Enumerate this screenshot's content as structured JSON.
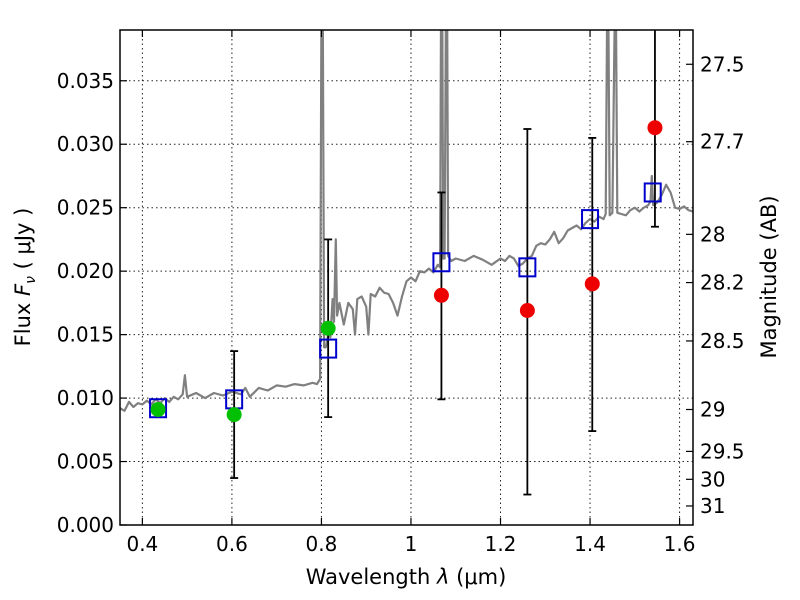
{
  "chart_data": {
    "type": "scatter",
    "title": "",
    "xlabel_main": "Wavelength",
    "xlabel_symbol": "λ",
    "xlabel_unit": "(μm)",
    "ylabel_main": "Flux",
    "ylabel_symbol": "F",
    "ylabel_subscript": "ν",
    "ylabel_unit": "( μJy )",
    "y2label": "Magnitude (AB)",
    "xlim": [
      0.35,
      1.63
    ],
    "ylim": [
      0.0,
      0.039
    ],
    "x_ticks": [
      0.4,
      0.6,
      0.8,
      1.0,
      1.2,
      1.4,
      1.6
    ],
    "x_tick_labels": [
      "0.4",
      "0.6",
      "0.8",
      "1",
      "1.2",
      "1.4",
      "1.6"
    ],
    "y_ticks": [
      0.0,
      0.005,
      0.01,
      0.015,
      0.02,
      0.025,
      0.03,
      0.035
    ],
    "y_tick_labels": [
      "0.000",
      "0.005",
      "0.010",
      "0.015",
      "0.020",
      "0.025",
      "0.030",
      "0.035"
    ],
    "y2_ticks": [
      {
        "label": "27.5",
        "flux": 0.0363
      },
      {
        "label": "27.7",
        "flux": 0.0302
      },
      {
        "label": "28",
        "flux": 0.0229
      },
      {
        "label": "28.2",
        "flux": 0.0191
      },
      {
        "label": "28.5",
        "flux": 0.0145
      },
      {
        "label": "29",
        "flux": 0.0091
      },
      {
        "label": "29.5",
        "flux": 0.0058
      },
      {
        "label": "30",
        "flux": 0.0036
      },
      {
        "label": "31",
        "flux": 0.0015
      }
    ],
    "grid": true,
    "colors": {
      "spectrum": "#808080",
      "model_box": "#0000cc",
      "green": "#00c000",
      "red": "#ee0000",
      "errorbar": "#000000"
    },
    "spectrum": [
      [
        0.35,
        0.0092
      ],
      [
        0.36,
        0.009
      ],
      [
        0.37,
        0.0097
      ],
      [
        0.38,
        0.0093
      ],
      [
        0.39,
        0.0096
      ],
      [
        0.4,
        0.0095
      ],
      [
        0.41,
        0.0098
      ],
      [
        0.42,
        0.0095
      ],
      [
        0.43,
        0.0099
      ],
      [
        0.44,
        0.0096
      ],
      [
        0.45,
        0.01
      ],
      [
        0.46,
        0.0097
      ],
      [
        0.47,
        0.0101
      ],
      [
        0.48,
        0.0099
      ],
      [
        0.49,
        0.0103
      ],
      [
        0.495,
        0.0118
      ],
      [
        0.5,
        0.0101
      ],
      [
        0.52,
        0.0104
      ],
      [
        0.54,
        0.01
      ],
      [
        0.56,
        0.0104
      ],
      [
        0.58,
        0.0102
      ],
      [
        0.6,
        0.0105
      ],
      [
        0.62,
        0.0103
      ],
      [
        0.63,
        0.0108
      ],
      [
        0.64,
        0.0101
      ],
      [
        0.66,
        0.0108
      ],
      [
        0.68,
        0.0106
      ],
      [
        0.7,
        0.011
      ],
      [
        0.72,
        0.0109
      ],
      [
        0.74,
        0.0111
      ],
      [
        0.76,
        0.011
      ],
      [
        0.78,
        0.0112
      ],
      [
        0.79,
        0.0111
      ],
      [
        0.797,
        0.0115
      ],
      [
        0.8,
        0.04
      ],
      [
        0.803,
        0.04
      ],
      [
        0.806,
        0.014
      ],
      [
        0.81,
        0.014
      ],
      [
        0.815,
        0.015
      ],
      [
        0.82,
        0.0148
      ],
      [
        0.825,
        0.0178
      ],
      [
        0.828,
        0.016
      ],
      [
        0.832,
        0.0225
      ],
      [
        0.835,
        0.0165
      ],
      [
        0.84,
        0.0175
      ],
      [
        0.85,
        0.0158
      ],
      [
        0.86,
        0.0175
      ],
      [
        0.87,
        0.017
      ],
      [
        0.875,
        0.015
      ],
      [
        0.88,
        0.0178
      ],
      [
        0.89,
        0.018
      ],
      [
        0.9,
        0.0172
      ],
      [
        0.905,
        0.015
      ],
      [
        0.91,
        0.0182
      ],
      [
        0.92,
        0.018
      ],
      [
        0.93,
        0.0187
      ],
      [
        0.94,
        0.0183
      ],
      [
        0.95,
        0.0182
      ],
      [
        0.96,
        0.0175
      ],
      [
        0.97,
        0.0165
      ],
      [
        0.98,
        0.018
      ],
      [
        0.99,
        0.0192
      ],
      [
        1.0,
        0.0195
      ],
      [
        1.01,
        0.0192
      ],
      [
        1.02,
        0.02
      ],
      [
        1.03,
        0.0199
      ],
      [
        1.04,
        0.0202
      ],
      [
        1.05,
        0.0199
      ],
      [
        1.06,
        0.0205
      ],
      [
        1.065,
        0.0203
      ],
      [
        1.067,
        0.04
      ],
      [
        1.07,
        0.04
      ],
      [
        1.072,
        0.021
      ],
      [
        1.075,
        0.021
      ],
      [
        1.078,
        0.04
      ],
      [
        1.081,
        0.04
      ],
      [
        1.083,
        0.0212
      ],
      [
        1.09,
        0.0208
      ],
      [
        1.1,
        0.021
      ],
      [
        1.12,
        0.0208
      ],
      [
        1.14,
        0.0212
      ],
      [
        1.16,
        0.0209
      ],
      [
        1.18,
        0.0205
      ],
      [
        1.2,
        0.021
      ],
      [
        1.21,
        0.0208
      ],
      [
        1.22,
        0.0212
      ],
      [
        1.23,
        0.021
      ],
      [
        1.24,
        0.0204
      ],
      [
        1.25,
        0.0206
      ],
      [
        1.26,
        0.021
      ],
      [
        1.27,
        0.0212
      ],
      [
        1.28,
        0.022
      ],
      [
        1.29,
        0.0222
      ],
      [
        1.3,
        0.0221
      ],
      [
        1.31,
        0.0225
      ],
      [
        1.32,
        0.0231
      ],
      [
        1.33,
        0.0222
      ],
      [
        1.34,
        0.0226
      ],
      [
        1.35,
        0.0232
      ],
      [
        1.36,
        0.0234
      ],
      [
        1.37,
        0.0236
      ],
      [
        1.38,
        0.0233
      ],
      [
        1.39,
        0.0238
      ],
      [
        1.4,
        0.0241
      ],
      [
        1.41,
        0.0239
      ],
      [
        1.42,
        0.0243
      ],
      [
        1.43,
        0.0241
      ],
      [
        1.435,
        0.0245
      ],
      [
        1.438,
        0.04
      ],
      [
        1.441,
        0.04
      ],
      [
        1.444,
        0.0244
      ],
      [
        1.45,
        0.0246
      ],
      [
        1.455,
        0.04
      ],
      [
        1.458,
        0.04
      ],
      [
        1.461,
        0.0246
      ],
      [
        1.47,
        0.0245
      ],
      [
        1.48,
        0.0244
      ],
      [
        1.49,
        0.0248
      ],
      [
        1.5,
        0.025
      ],
      [
        1.51,
        0.0247
      ],
      [
        1.52,
        0.025
      ],
      [
        1.53,
        0.0252
      ],
      [
        1.535,
        0.0255
      ],
      [
        1.538,
        0.0275
      ],
      [
        1.541,
        0.0252
      ],
      [
        1.55,
        0.0254
      ],
      [
        1.56,
        0.026
      ],
      [
        1.57,
        0.0268
      ],
      [
        1.58,
        0.0262
      ],
      [
        1.59,
        0.025
      ],
      [
        1.6,
        0.0249
      ],
      [
        1.61,
        0.0251
      ],
      [
        1.62,
        0.0248
      ],
      [
        1.63,
        0.0247
      ]
    ],
    "model_boxes": [
      {
        "x": 0.435,
        "y": 0.0092
      },
      {
        "x": 0.605,
        "y": 0.0099
      },
      {
        "x": 0.815,
        "y": 0.0139
      },
      {
        "x": 1.068,
        "y": 0.0207
      },
      {
        "x": 1.26,
        "y": 0.0203
      },
      {
        "x": 1.4,
        "y": 0.0241
      },
      {
        "x": 1.54,
        "y": 0.0262
      }
    ],
    "points": [
      {
        "x": 0.435,
        "y": 0.0091,
        "color": "green",
        "err": null
      },
      {
        "x": 0.605,
        "y": 0.0087,
        "color": "green",
        "err": [
          0.0037,
          0.0137
        ]
      },
      {
        "x": 0.815,
        "y": 0.0155,
        "color": "green",
        "err": [
          0.0085,
          0.0225
        ]
      },
      {
        "x": 1.068,
        "y": 0.0181,
        "color": "red",
        "err": [
          0.0099,
          0.0262
        ]
      },
      {
        "x": 1.26,
        "y": 0.0169,
        "color": "red",
        "err": [
          0.0024,
          0.0312
        ]
      },
      {
        "x": 1.405,
        "y": 0.019,
        "color": "red",
        "err": [
          0.0074,
          0.0305
        ]
      },
      {
        "x": 1.545,
        "y": 0.0313,
        "color": "red",
        "err": [
          0.0235,
          0.04
        ]
      }
    ]
  }
}
